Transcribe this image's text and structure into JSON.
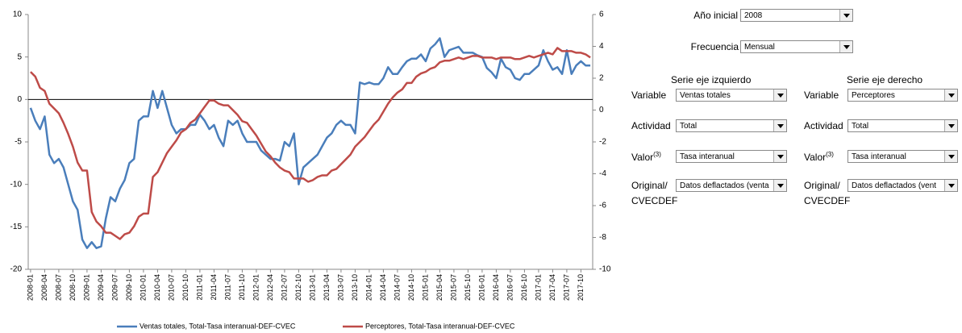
{
  "chart_data": {
    "type": "line",
    "categories": [
      "2008-01",
      null,
      null,
      "2008-04",
      null,
      null,
      "2008-07",
      null,
      null,
      "2008-10",
      null,
      null,
      "2009-01",
      null,
      null,
      "2009-04",
      null,
      null,
      "2009-07",
      null,
      null,
      "2009-10",
      null,
      null,
      "2010-01",
      null,
      null,
      "2010-04",
      null,
      null,
      "2010-07",
      null,
      null,
      "2010-10",
      null,
      null,
      "2011-01",
      null,
      null,
      "2011-04",
      null,
      null,
      "2011-07",
      null,
      null,
      "2011-10",
      null,
      null,
      "2012-01",
      null,
      null,
      "2012-04",
      null,
      null,
      "2012-07",
      null,
      null,
      "2012-10",
      null,
      null,
      "2013-01",
      null,
      null,
      "2013-04",
      null,
      null,
      "2013-07",
      null,
      null,
      "2013-10",
      null,
      null,
      "2014-01",
      null,
      null,
      "2014-04",
      null,
      null,
      "2014-07",
      null,
      null,
      "2014-10",
      null,
      null,
      "2015-01",
      null,
      null,
      "2015-04",
      null,
      null,
      "2015-07",
      null,
      null,
      "2015-10",
      null,
      null,
      "2016-01",
      null,
      null,
      "2016-04",
      null,
      null,
      "2016-07",
      null,
      null,
      "2016-10",
      null,
      null,
      "2017-01",
      null,
      null,
      "2017-04",
      null,
      null,
      "2017-07",
      null,
      null,
      "2017-10",
      null,
      null
    ],
    "series": [
      {
        "name": "Ventas totales, Total-Tasa interanual-DEF-CVEC",
        "color": "#4a7ebb",
        "axis": "y",
        "values": [
          -1,
          -2.5,
          -3.5,
          -2,
          -6.5,
          -7.5,
          -7,
          -8,
          -10,
          -12,
          -13,
          -16.5,
          -17.5,
          -16.8,
          -17.5,
          -17.3,
          -14,
          -11.5,
          -12,
          -10.5,
          -9.5,
          -7.5,
          -7,
          -2.5,
          -2,
          -2,
          1,
          -1,
          1,
          -1,
          -3,
          -4,
          -3.5,
          -3.5,
          -3,
          -3,
          -1.8,
          -2.5,
          -3.5,
          -3,
          -4.5,
          -5.5,
          -2.5,
          -3,
          -2.5,
          -4,
          -5,
          -5,
          -5,
          -6,
          -6.5,
          -7,
          -7,
          -7.2,
          -5,
          -5.5,
          -4,
          -10,
          -8,
          -7.5,
          -7,
          -6.5,
          -5.5,
          -4.5,
          -4,
          -3,
          -2.5,
          -3,
          -3,
          -4,
          2,
          1.8,
          2,
          1.8,
          1.8,
          2.5,
          3.8,
          3,
          3,
          3.8,
          4.5,
          4.8,
          4.8,
          5.3,
          4.5,
          6,
          6.5,
          7.2,
          5,
          5.8,
          6,
          6.2,
          5.5,
          5.5,
          5.5,
          5.2,
          5,
          3.7,
          3.2,
          2.5,
          4.8,
          3.8,
          3.5,
          2.5,
          2.3,
          3,
          3,
          3.5,
          4,
          5.8,
          4.5,
          3.5,
          3.8,
          3,
          5.8,
          3,
          4,
          4.5,
          4,
          4
        ]
      },
      {
        "name": "Perceptores, Total-Tasa interanual-DEF-CVEC",
        "color": "#be4b48",
        "axis": "y2",
        "values": [
          2.4,
          2.1,
          1.4,
          1.2,
          0.4,
          0.1,
          -0.2,
          -0.8,
          -1.5,
          -2.3,
          -3.3,
          -3.8,
          -3.8,
          -6.4,
          -7,
          -7.3,
          -7.7,
          -7.7,
          -7.9,
          -8.1,
          -7.8,
          -7.7,
          -7.3,
          -6.7,
          -6.5,
          -6.5,
          -4.2,
          -3.9,
          -3.3,
          -2.7,
          -2.3,
          -1.9,
          -1.4,
          -1.2,
          -0.8,
          -0.6,
          -0.2,
          0.2,
          0.6,
          0.6,
          0.4,
          0.3,
          0.3,
          0,
          -0.3,
          -0.7,
          -0.8,
          -1.2,
          -1.6,
          -2.1,
          -2.6,
          -2.9,
          -3.3,
          -3.6,
          -3.8,
          -3.9,
          -4.3,
          -4.3,
          -4.3,
          -4.5,
          -4.4,
          -4.2,
          -4.1,
          -4.1,
          -3.8,
          -3.7,
          -3.4,
          -3.1,
          -2.8,
          -2.3,
          -2,
          -1.7,
          -1.3,
          -0.9,
          -0.6,
          -0.1,
          0.4,
          0.8,
          1.1,
          1.3,
          1.7,
          1.7,
          2.1,
          2.3,
          2.4,
          2.6,
          2.7,
          3,
          3.1,
          3.1,
          3.2,
          3.3,
          3.2,
          3.3,
          3.4,
          3.4,
          3.3,
          3.3,
          3.3,
          3.2,
          3.3,
          3.3,
          3.3,
          3.2,
          3.2,
          3.3,
          3.4,
          3.3,
          3.4,
          3.5,
          3.6,
          3.5,
          3.9,
          3.7,
          3.7,
          3.7,
          3.6,
          3.6,
          3.5,
          3.3
        ]
      }
    ],
    "ylim": [
      -20,
      10
    ],
    "yticks": [
      -20,
      -15,
      -10,
      -5,
      0,
      5,
      10
    ],
    "y2lim": [
      -10,
      6
    ],
    "y2ticks": [
      -10,
      -8,
      -6,
      -4,
      -2,
      0,
      2,
      4,
      6
    ],
    "zero_line": true,
    "legend": "bottom"
  },
  "controls": {
    "start_year": {
      "label": "Año inicial",
      "value": "2008"
    },
    "frequency": {
      "label": "Frecuencia",
      "value": "Mensual"
    },
    "left": {
      "heading": "Serie eje izquierdo",
      "variable": {
        "label": "Variable",
        "value": "Ventas totales"
      },
      "activity": {
        "label": "Actividad",
        "value": "Total"
      },
      "measure": {
        "label": "Valor",
        "note": "(3)",
        "value": "Tasa interanual"
      },
      "original": {
        "label": [
          "Original/",
          "CVECDEF"
        ],
        "value": "Datos deflactados (venta"
      }
    },
    "right": {
      "heading": "Serie eje derecho",
      "variable": {
        "label": "Variable",
        "value": "Perceptores"
      },
      "activity": {
        "label": "Actividad",
        "value": "Total"
      },
      "measure": {
        "label": "Valor",
        "note": "(3)",
        "value": "Tasa interanual"
      },
      "original": {
        "label": [
          "Original/",
          "CVECDEF"
        ],
        "value": "Datos deflactados (vent"
      }
    }
  }
}
